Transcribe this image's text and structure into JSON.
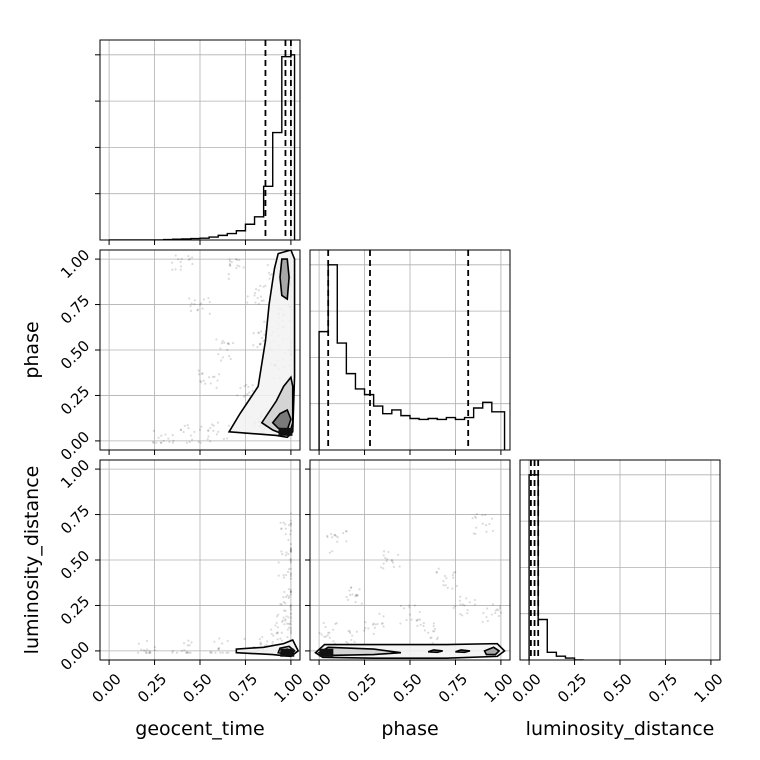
{
  "chart_data": {
    "type": "corner",
    "parameters": [
      "geocent_time",
      "phase",
      "luminosity_distance"
    ],
    "axis_labels": {
      "x": [
        "geocent_time",
        "phase",
        "luminosity_distance"
      ],
      "y": [
        "phase",
        "luminosity_distance"
      ]
    },
    "ticks": [
      "0.00",
      "0.25",
      "0.50",
      "0.75",
      "1.00"
    ],
    "grid": true,
    "panels": [
      {
        "kind": "hist1d",
        "param": "geocent_time",
        "xlim": [
          -0.05,
          1.05
        ],
        "bin_edges": [
          0.0,
          0.05,
          0.1,
          0.15,
          0.2,
          0.25,
          0.3,
          0.35,
          0.4,
          0.45,
          0.5,
          0.55,
          0.6,
          0.65,
          0.7,
          0.75,
          0.8,
          0.85,
          0.9,
          0.95,
          1.0,
          1.02
        ],
        "counts": [
          0,
          0,
          0,
          0,
          0,
          0,
          0.002,
          0.004,
          0.006,
          0.008,
          0.01,
          0.016,
          0.025,
          0.035,
          0.05,
          0.085,
          0.125,
          0.29,
          0.58,
          0.99,
          1.0
        ],
        "quantiles": [
          0.86,
          0.97,
          1.0
        ]
      },
      {
        "kind": "hist1d",
        "param": "phase",
        "xlim": [
          -0.05,
          1.05
        ],
        "bin_edges": [
          0.0,
          0.05,
          0.1,
          0.15,
          0.2,
          0.25,
          0.3,
          0.35,
          0.4,
          0.45,
          0.5,
          0.55,
          0.6,
          0.65,
          0.7,
          0.75,
          0.8,
          0.85,
          0.9,
          0.95,
          1.0,
          1.02
        ],
        "counts": [
          0.62,
          0.97,
          0.56,
          0.4,
          0.32,
          0.29,
          0.23,
          0.19,
          0.21,
          0.18,
          0.165,
          0.16,
          0.165,
          0.16,
          0.17,
          0.16,
          0.17,
          0.22,
          0.25,
          0.2,
          0.2
        ],
        "quantiles": [
          0.05,
          0.28,
          0.82
        ]
      },
      {
        "kind": "hist1d",
        "param": "luminosity_distance",
        "xlim": [
          -0.05,
          1.05
        ],
        "bin_edges": [
          0.0,
          0.05,
          0.1,
          0.15,
          0.2,
          0.25,
          0.3
        ],
        "counts": [
          0.96,
          0.21,
          0.04,
          0.02,
          0.01,
          0.0
        ],
        "quantiles": [
          0.01,
          0.03,
          0.05
        ]
      },
      {
        "kind": "hist2d",
        "x": "geocent_time",
        "y": "phase",
        "xlim": [
          -0.05,
          1.05
        ],
        "ylim": [
          -0.05,
          1.05
        ],
        "contours": [
          [
            [
              0.92,
              0.03
            ],
            [
              0.98,
              0.02
            ],
            [
              1.01,
              0.05
            ],
            [
              1.02,
              0.35
            ],
            [
              1.02,
              0.7
            ],
            [
              1.02,
              1.0
            ],
            [
              1.0,
              1.05
            ],
            [
              0.93,
              1.03
            ],
            [
              0.91,
              0.95
            ],
            [
              0.88,
              0.75
            ],
            [
              0.86,
              0.55
            ],
            [
              0.82,
              0.3
            ],
            [
              0.72,
              0.15
            ],
            [
              0.66,
              0.05
            ]
          ],
          [
            [
              0.95,
              0.04
            ],
            [
              0.99,
              0.03
            ],
            [
              1.01,
              0.1
            ],
            [
              1.01,
              0.3
            ],
            [
              1.0,
              0.35
            ],
            [
              0.96,
              0.3
            ],
            [
              0.92,
              0.22
            ],
            [
              0.84,
              0.1
            ],
            [
              0.9,
              0.06
            ]
          ],
          [
            [
              0.95,
              0.8
            ],
            [
              0.98,
              0.78
            ],
            [
              0.99,
              0.9
            ],
            [
              0.98,
              1.0
            ],
            [
              0.95,
              1.0
            ],
            [
              0.94,
              0.9
            ]
          ],
          [
            [
              0.93,
              0.07
            ],
            [
              0.98,
              0.06
            ],
            [
              1.0,
              0.12
            ],
            [
              0.98,
              0.17
            ],
            [
              0.94,
              0.15
            ],
            [
              0.9,
              0.1
            ]
          ]
        ],
        "points": [
          [
            0.88,
            0.12
          ],
          [
            0.93,
            0.4
          ],
          [
            0.96,
            0.72
          ],
          [
            0.75,
            0.25
          ],
          [
            0.6,
            0.05
          ],
          [
            0.98,
            0.9
          ],
          [
            0.85,
            0.55
          ],
          [
            0.7,
            0.95
          ],
          [
            0.8,
            0.8
          ],
          [
            0.55,
            0.35
          ],
          [
            0.45,
            0.03
          ],
          [
            0.9,
            0.6
          ],
          [
            0.97,
            0.2
          ],
          [
            0.4,
            1.0
          ],
          [
            0.65,
            0.5
          ],
          [
            0.3,
            0.0
          ],
          [
            0.92,
            0.95
          ],
          [
            0.8,
            0.1
          ],
          [
            0.5,
            0.75
          ],
          [
            0.99,
            0.5
          ]
        ],
        "peak": [
          0.97,
          0.05
        ]
      },
      {
        "kind": "hist2d",
        "x": "geocent_time",
        "y": "luminosity_distance",
        "xlim": [
          -0.05,
          1.05
        ],
        "ylim": [
          -0.05,
          1.05
        ],
        "contours": [
          [
            [
              0.7,
              -0.01
            ],
            [
              0.9,
              -0.02
            ],
            [
              1.0,
              -0.03
            ],
            [
              1.04,
              0.0
            ],
            [
              1.01,
              0.06
            ],
            [
              0.96,
              0.04
            ],
            [
              0.85,
              0.02
            ],
            [
              0.7,
              0.01
            ]
          ],
          [
            [
              0.93,
              -0.01
            ],
            [
              0.99,
              -0.02
            ],
            [
              1.02,
              0.0
            ],
            [
              0.99,
              0.025
            ],
            [
              0.94,
              0.015
            ]
          ],
          [
            [
              0.96,
              -0.01
            ],
            [
              0.99,
              -0.015
            ],
            [
              1.0,
              0.0
            ],
            [
              0.98,
              0.01
            ],
            [
              0.96,
              0.005
            ]
          ]
        ],
        "points": [
          [
            0.99,
            0.3
          ],
          [
            0.98,
            0.15
          ],
          [
            1.0,
            0.7
          ],
          [
            0.95,
            0.1
          ],
          [
            0.9,
            0.05
          ],
          [
            0.99,
            0.45
          ],
          [
            0.8,
            0.02
          ],
          [
            0.6,
            0.01
          ],
          [
            0.4,
            0.0
          ],
          [
            0.2,
            0.0
          ],
          [
            1.0,
            0.55
          ],
          [
            0.97,
            0.22
          ]
        ],
        "peak": [
          0.98,
          -0.01
        ]
      },
      {
        "kind": "hist2d",
        "x": "phase",
        "y": "luminosity_distance",
        "xlim": [
          -0.05,
          1.05
        ],
        "ylim": [
          -0.05,
          1.05
        ],
        "contours": [
          [
            [
              -0.02,
              -0.01
            ],
            [
              0.02,
              -0.035
            ],
            [
              0.3,
              -0.04
            ],
            [
              0.7,
              -0.04
            ],
            [
              0.98,
              -0.03
            ],
            [
              1.02,
              0.0
            ],
            [
              0.98,
              0.04
            ],
            [
              0.7,
              0.035
            ],
            [
              0.3,
              0.035
            ],
            [
              0.03,
              0.035
            ]
          ],
          [
            [
              0.0,
              -0.01
            ],
            [
              0.05,
              -0.025
            ],
            [
              0.3,
              -0.02
            ],
            [
              0.45,
              -0.01
            ],
            [
              0.3,
              0.01
            ],
            [
              0.05,
              0.02
            ]
          ],
          [
            [
              0.92,
              -0.02
            ],
            [
              0.97,
              -0.02
            ],
            [
              0.99,
              0.0
            ],
            [
              0.96,
              0.02
            ],
            [
              0.91,
              0.0
            ]
          ],
          [
            [
              0.6,
              -0.005
            ],
            [
              0.65,
              -0.008
            ],
            [
              0.68,
              0.0
            ],
            [
              0.63,
              0.005
            ]
          ],
          [
            [
              0.75,
              -0.005
            ],
            [
              0.8,
              -0.008
            ],
            [
              0.83,
              0.0
            ],
            [
              0.78,
              0.005
            ]
          ]
        ],
        "points": [
          [
            0.5,
            0.2
          ],
          [
            0.2,
            0.3
          ],
          [
            0.1,
            0.6
          ],
          [
            0.9,
            0.7
          ],
          [
            0.7,
            0.4
          ],
          [
            0.3,
            0.15
          ],
          [
            0.8,
            0.25
          ],
          [
            0.4,
            0.5
          ],
          [
            0.6,
            0.1
          ],
          [
            0.95,
            0.2
          ],
          [
            0.05,
            0.1
          ],
          [
            0.15,
            0.05
          ]
        ],
        "peak": [
          0.04,
          -0.01
        ]
      }
    ]
  }
}
